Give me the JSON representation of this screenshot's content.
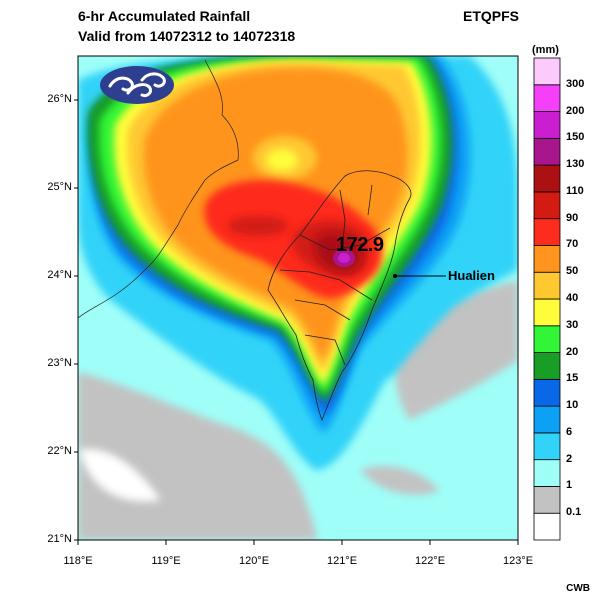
{
  "header": {
    "title_line1": "6-hr Accumulated Rainfall",
    "title_line2": "Valid from 14072312 to 14072318",
    "model": "ETQPFS",
    "credit": "CWB"
  },
  "logo": {
    "icon": "cwb-cloud-logo-icon"
  },
  "axes": {
    "lat_labels": [
      "26°N",
      "25°N",
      "24°N",
      "23°N",
      "22°N",
      "21°N"
    ],
    "lon_labels": [
      "118°E",
      "119°E",
      "120°E",
      "121°E",
      "122°E",
      "123°E"
    ]
  },
  "legend": {
    "unit": "(mm)",
    "levels": [
      "0.1",
      "1",
      "2",
      "6",
      "10",
      "15",
      "20",
      "30",
      "40",
      "50",
      "70",
      "90",
      "110",
      "130",
      "150",
      "200",
      "300"
    ],
    "colors": [
      "#ffffff",
      "#c2c2c2",
      "#9ffef8",
      "#32d3f8",
      "#0ca1f5",
      "#0868e8",
      "#189e25",
      "#31f536",
      "#fffd3b",
      "#ffc831",
      "#ff941e",
      "#fe2c1c",
      "#d21c13",
      "#ab1112",
      "#a8158c",
      "#c91fd0",
      "#f540f9",
      "#fccbfc"
    ]
  },
  "annotations": {
    "max_value": "172.9",
    "city": "Hualien"
  }
}
